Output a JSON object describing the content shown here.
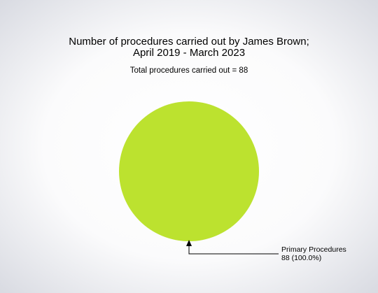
{
  "chart_data": {
    "type": "pie",
    "title": [
      "Number of procedures carried out by James Brown;",
      "April 2019 - March 2023"
    ],
    "subtitle": "Total procedures carried out = 88",
    "categories": [
      "Primary Procedures"
    ],
    "values": [
      88
    ],
    "value_labels": [
      "88 (100.0%)"
    ],
    "colors": [
      "#bce22f"
    ]
  }
}
